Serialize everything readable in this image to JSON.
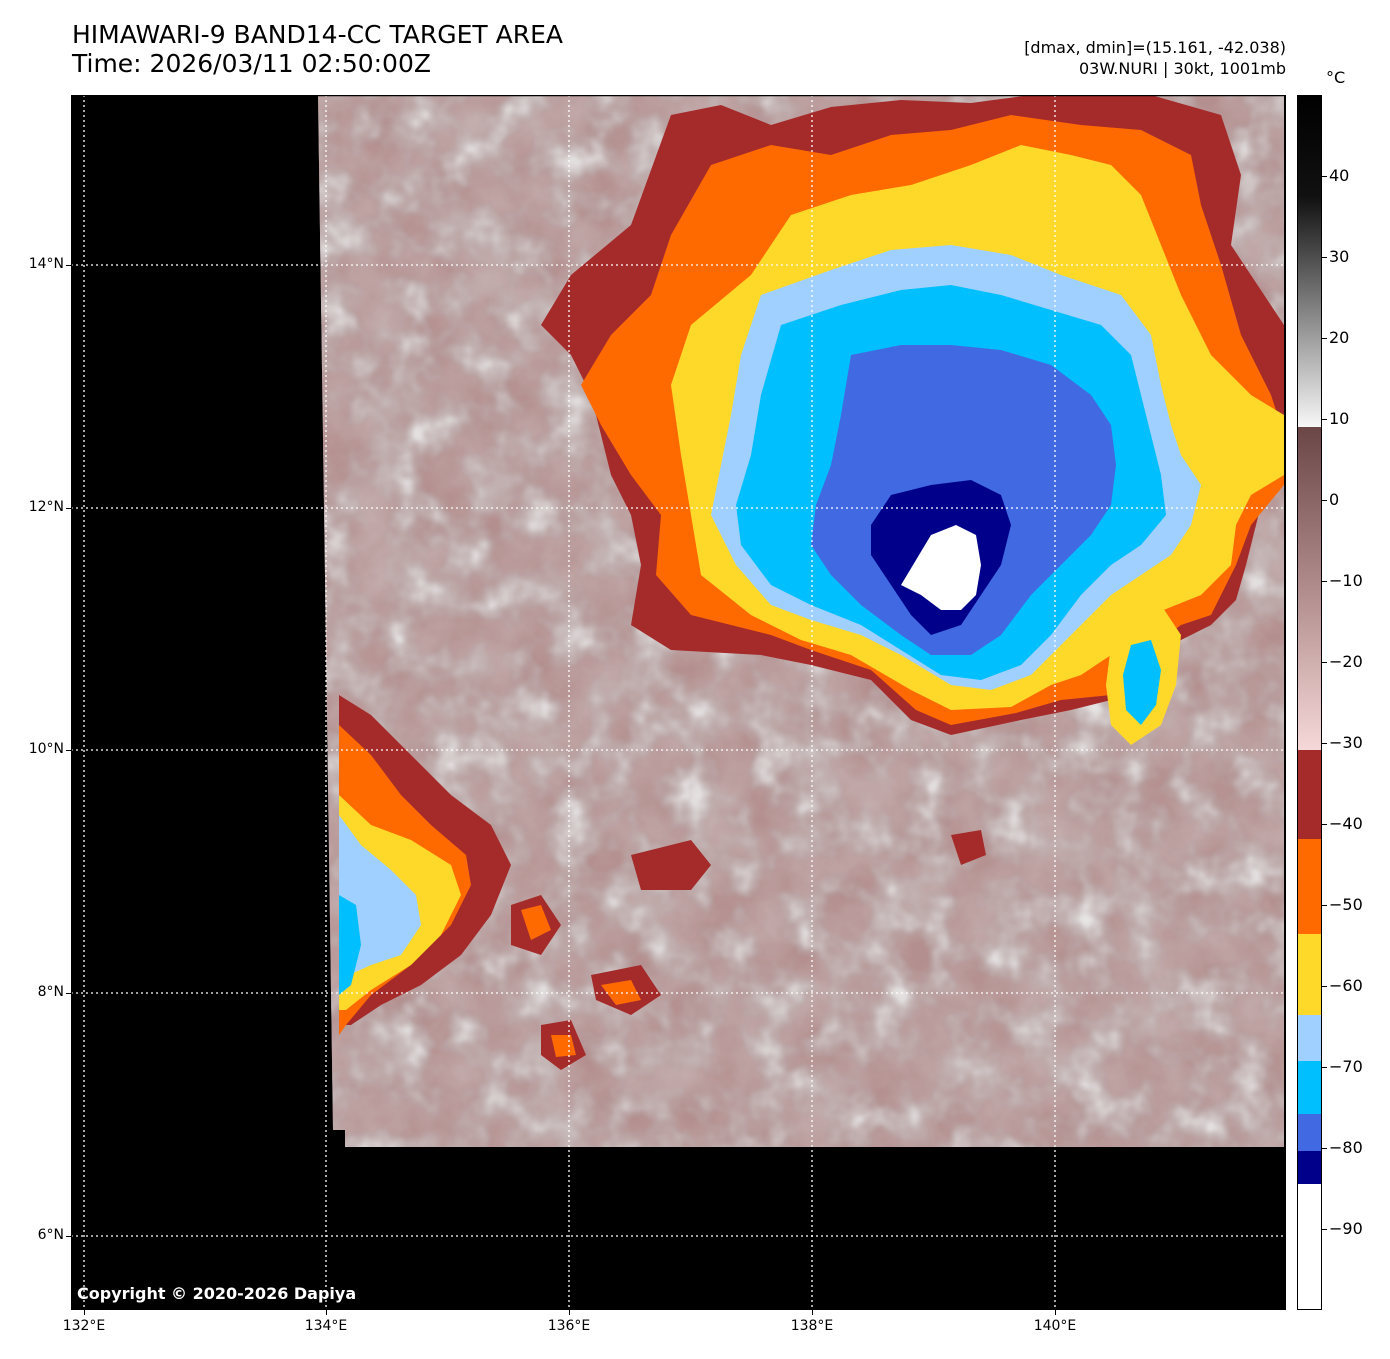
{
  "title_line1": "HIMAWARI-9 BAND14-CC TARGET AREA",
  "title_line2": "Time: 2026/03/11 02:50:00Z",
  "info_line1": "[dmax, dmin]=(15.161, -42.038)",
  "info_line2": "03W.NURI | 30kt, 1001mb",
  "unit_label": "°C",
  "copyright": "Copyright © 2020-2026 Dapiya",
  "lat_labels": [
    "14°N",
    "12°N",
    "10°N",
    "8°N",
    "6°N"
  ],
  "lon_labels": [
    "132°E",
    "134°E",
    "136°E",
    "138°E",
    "140°E"
  ],
  "colorbar": {
    "tick_labels": [
      "40",
      "30",
      "20",
      "10",
      "0",
      "−10",
      "−20",
      "−30",
      "−40",
      "−50",
      "−60",
      "−70",
      "−80",
      "−90"
    ],
    "tick_values": [
      40,
      30,
      20,
      10,
      0,
      -10,
      -20,
      -30,
      -40,
      -50,
      -60,
      -70,
      -80,
      -90
    ],
    "range": [
      -100,
      50
    ],
    "bands": [
      {
        "from": 8,
        "to": 50,
        "color": "gray-black"
      },
      {
        "from": -30,
        "to": 8,
        "color": "brown-pink"
      },
      {
        "from": -41,
        "to": -30,
        "color": "#A52A2A"
      },
      {
        "from": -50,
        "to": -41,
        "color": "#FF6A00"
      },
      {
        "from": -60,
        "to": -50,
        "color": "#FFD92A"
      },
      {
        "from": -66,
        "to": -60,
        "color": "#9FD0FF"
      },
      {
        "from": -75,
        "to": -66,
        "color": "#00BFFF"
      },
      {
        "from": -80,
        "to": -75,
        "color": "#4169E1"
      },
      {
        "from": -84,
        "to": -80,
        "color": "#00008B"
      },
      {
        "from": -100,
        "to": -84,
        "color": "#FFFFFF"
      }
    ]
  },
  "map_extent": {
    "lon": [
      131.9,
      141.9
    ],
    "lat": [
      5.4,
      15.4
    ]
  },
  "storm_center": {
    "lon": 139.0,
    "lat": 11.7
  }
}
